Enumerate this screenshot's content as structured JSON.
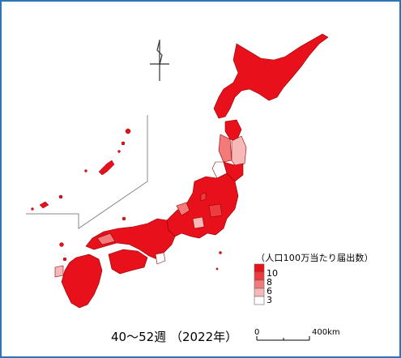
{
  "legend": {
    "title": "（人口100万当たり届出数）",
    "classes": [
      {
        "label": "10",
        "color": "#e8101a"
      },
      {
        "label": "8",
        "color": "#ee3b3f"
      },
      {
        "label": "6",
        "color": "#f47a7a"
      },
      {
        "label": "3",
        "color": "#f8b8b8"
      },
      {
        "label": "",
        "color": "#ffffff"
      }
    ]
  },
  "period_label": "40～52週 （2022年）",
  "scale": {
    "min_label": "0",
    "max_label": "400km"
  },
  "icons": {
    "north_arrow": "north-arrow-icon"
  }
}
